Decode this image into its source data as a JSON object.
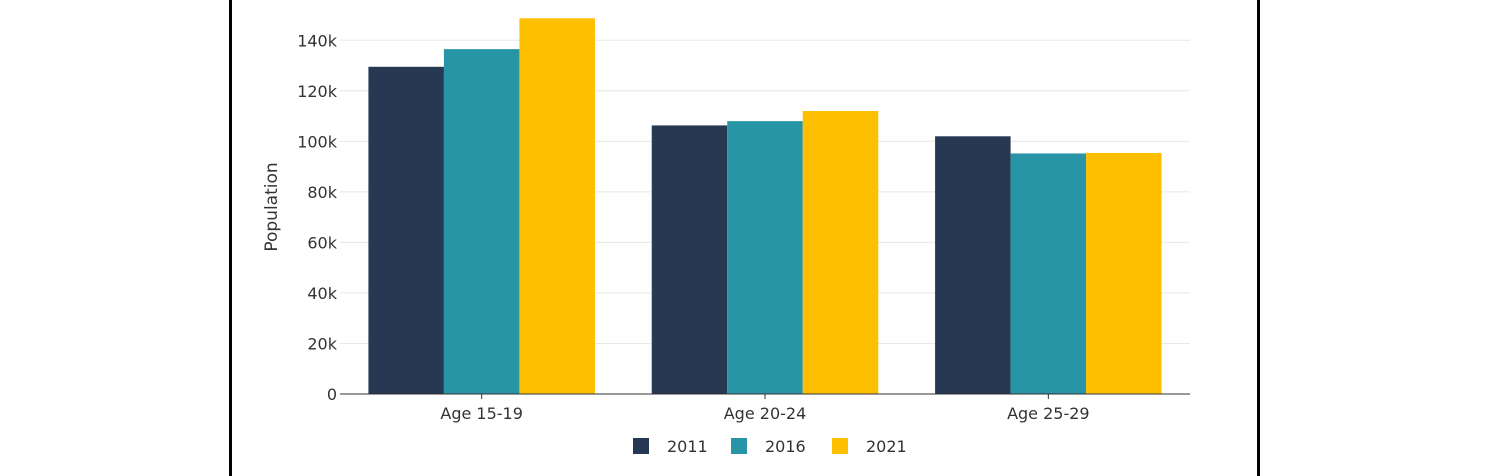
{
  "chart_data": {
    "type": "bar",
    "title": "",
    "xlabel": "",
    "ylabel": "Population",
    "categories": [
      "Age 15-19",
      "Age 20-24",
      "Age 25-29"
    ],
    "series": [
      {
        "name": "2011",
        "color": "#263852",
        "values": [
          129500,
          106300,
          102000
        ]
      },
      {
        "name": "2016",
        "color": "#2795a6",
        "values": [
          136500,
          108000,
          95200
        ]
      },
      {
        "name": "2021",
        "color": "#fdbf00",
        "values": [
          148700,
          112000,
          95400
        ]
      }
    ],
    "ylim": [
      0,
      150000
    ],
    "yticks": [
      0,
      20000,
      40000,
      60000,
      80000,
      100000,
      120000,
      140000
    ],
    "ytick_labels": [
      "0",
      "20k",
      "40k",
      "60k",
      "80k",
      "100k",
      "120k",
      "140k"
    ],
    "grid": true,
    "legend_position": "bottom"
  }
}
